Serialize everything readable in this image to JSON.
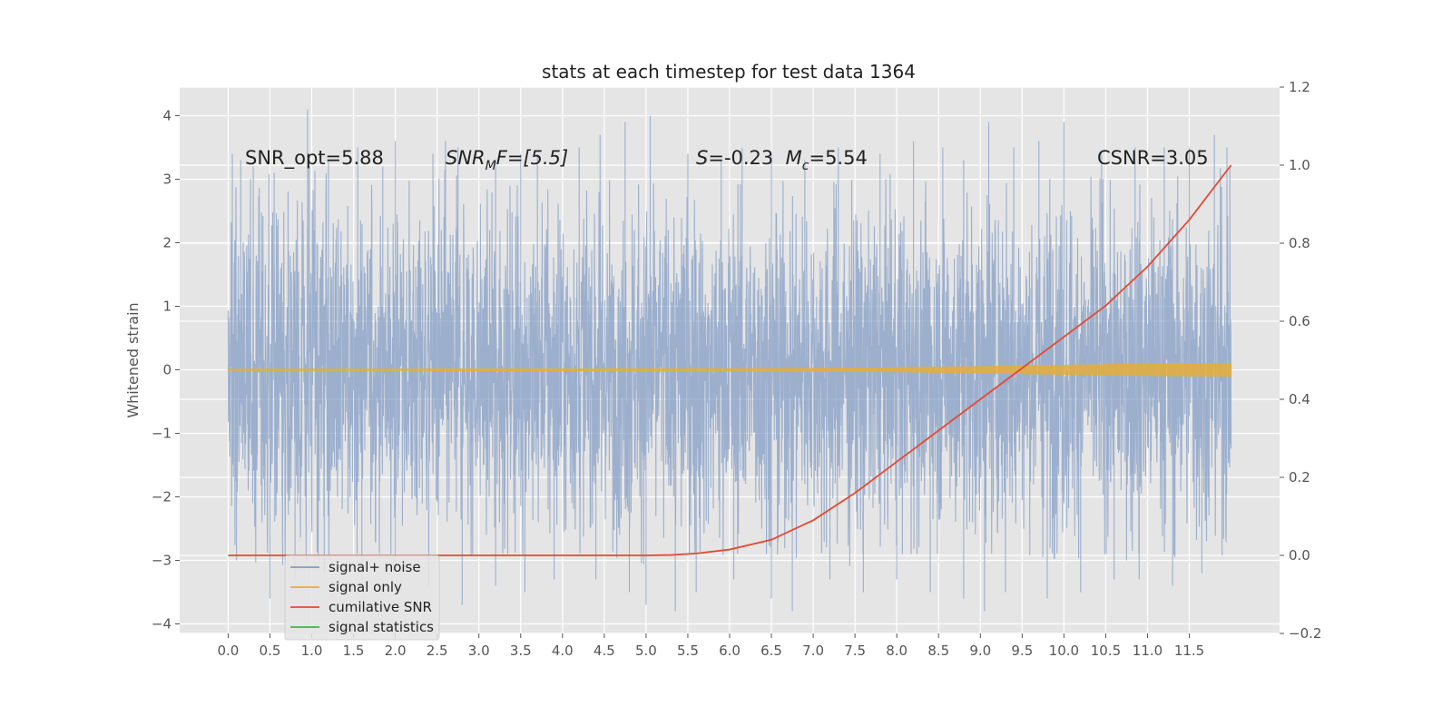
{
  "chart_data": {
    "type": "line",
    "title": "stats at each timestep for test data 1364",
    "ylabel": "Whitened strain",
    "xlim": [
      -0.58,
      12.58
    ],
    "ylim": [
      -4.15,
      4.45
    ],
    "y2lim": [
      -0.2,
      1.2
    ],
    "grid": true,
    "x_ticks": [
      "0.0",
      "0.5",
      "1.0",
      "1.5",
      "2.0",
      "2.5",
      "3.0",
      "3.5",
      "4.0",
      "4.5",
      "5.0",
      "5.5",
      "6.0",
      "6.5",
      "7.0",
      "7.5",
      "8.0",
      "8.5",
      "9.0",
      "9.5",
      "10.0",
      "10.5",
      "11.0",
      "11.5"
    ],
    "y_ticks": [
      "4",
      "3",
      "2",
      "1",
      "0",
      "−1",
      "−2",
      "−3",
      "−4"
    ],
    "y2_ticks": [
      "1.2",
      "1.0",
      "0.8",
      "0.6",
      "0.4",
      "0.2",
      "0.0",
      "−0.2"
    ],
    "legend_position": "lower-left",
    "series": [
      {
        "name": "signal+ noise",
        "color": "#7f9ac4",
        "axis": "left",
        "x_range": [
          0.0,
          12.0
        ],
        "envelope_upper": [
          2.6,
          2.8,
          2.9,
          2.7,
          2.6,
          2.9,
          2.6,
          2.6,
          2.9,
          2.7,
          2.6,
          2.8,
          2.6,
          2.7,
          2.6,
          2.7,
          2.8,
          2.6,
          2.7,
          2.6,
          2.8,
          2.7,
          2.6,
          2.8,
          2.9
        ],
        "envelope_lower": [
          -2.6,
          -2.8,
          -2.7,
          -2.6,
          -2.6,
          -2.7,
          -2.6,
          -2.6,
          -2.7,
          -2.6,
          -2.8,
          -2.7,
          -2.6,
          -2.6,
          -2.7,
          -2.8,
          -2.6,
          -2.6,
          -2.7,
          -2.6,
          -2.7,
          -2.6,
          -2.8,
          -2.7,
          -2.6
        ],
        "peaks_x": [
          0.05,
          0.15,
          0.3,
          0.55,
          0.95,
          1.2,
          1.55,
          1.85,
          2.0,
          2.45,
          2.6,
          2.75,
          3.2,
          3.5,
          3.7,
          4.2,
          4.45,
          4.75,
          5.05,
          5.5,
          5.9,
          6.15,
          6.5,
          6.9,
          7.3,
          7.8,
          8.2,
          8.55,
          8.8,
          9.1,
          9.4,
          9.7,
          10.0,
          10.45,
          10.85,
          11.2,
          11.5,
          11.8,
          11.95
        ],
        "peaks_y": [
          3.4,
          3.3,
          3.2,
          3.1,
          4.1,
          3.3,
          3.5,
          3.2,
          3.6,
          3.4,
          3.6,
          3.5,
          3.3,
          3.4,
          3.4,
          3.5,
          3.7,
          3.9,
          4.0,
          3.4,
          3.3,
          3.5,
          3.4,
          3.3,
          3.5,
          3.4,
          3.6,
          3.5,
          3.3,
          3.9,
          3.5,
          3.6,
          3.9,
          3.4,
          3.5,
          3.5,
          3.5,
          3.7,
          3.5
        ],
        "troughs_x": [
          0.1,
          0.5,
          0.8,
          1.15,
          1.6,
          2.0,
          2.4,
          2.8,
          3.2,
          3.55,
          3.9,
          4.4,
          4.8,
          5.0,
          5.35,
          5.6,
          6.05,
          6.5,
          6.75,
          7.2,
          7.6,
          8.0,
          8.4,
          8.8,
          9.05,
          9.3,
          9.8,
          10.2,
          10.6,
          10.9,
          11.3,
          11.65
        ],
        "troughs_y": [
          -3.0,
          -3.6,
          -3.3,
          -3.2,
          -3.3,
          -3.2,
          -3.4,
          -3.7,
          -3.4,
          -3.5,
          -3.3,
          -3.3,
          -3.5,
          -3.7,
          -3.8,
          -3.5,
          -3.3,
          -3.6,
          -3.8,
          -3.3,
          -3.5,
          -3.3,
          -3.5,
          -3.6,
          -3.8,
          -3.5,
          -3.6,
          -3.5,
          -3.3,
          -3.3,
          -3.4,
          -3.2
        ]
      },
      {
        "name": "signal only",
        "color": "#e5ae38",
        "axis": "left",
        "amplitude_x": [
          0.0,
          6.0,
          8.0,
          9.0,
          10.0,
          11.0,
          12.0
        ],
        "amplitude_y": [
          0.01,
          0.015,
          0.03,
          0.05,
          0.07,
          0.09,
          0.1
        ]
      },
      {
        "name": "cumilative SNR",
        "color": "#e24a33",
        "axis": "right",
        "x": [
          0.0,
          1.0,
          2.0,
          3.0,
          4.0,
          5.0,
          5.3,
          5.6,
          6.0,
          6.5,
          7.0,
          7.5,
          8.0,
          8.5,
          9.0,
          9.5,
          10.0,
          10.5,
          11.0,
          11.5,
          12.0
        ],
        "y": [
          0.0,
          0.0,
          0.0,
          0.0,
          0.0,
          0.0,
          0.001,
          0.005,
          0.015,
          0.04,
          0.09,
          0.16,
          0.24,
          0.32,
          0.4,
          0.48,
          0.56,
          0.64,
          0.74,
          0.86,
          1.0
        ]
      },
      {
        "name": "signal statistics",
        "color": "#348abd",
        "axis": "left",
        "x": [],
        "y": []
      }
    ],
    "annotations": [
      {
        "x": 0.2,
        "y": 3.3,
        "text": "SNR_opt=5.88"
      },
      {
        "x": 2.6,
        "y": 3.3,
        "text": "SNR_M F=[5.5]",
        "mainText": "SNR",
        "subText": "M",
        "tailText": "F=[5.5]"
      },
      {
        "x": 5.6,
        "y": 3.3,
        "text": "S=-0.23  M_c=5.54",
        "s_var": "S",
        "s_val": "=-0.23  ",
        "m_var": "M",
        "m_sub": "c",
        "m_val": "=5.54"
      },
      {
        "x": 10.4,
        "y": 3.3,
        "text": "CSNR=3.05"
      }
    ]
  },
  "legend": {
    "items": [
      {
        "label": "signal+ noise",
        "color": "#7f9ac4"
      },
      {
        "label": "signal only",
        "color": "#e5ae38"
      },
      {
        "label": "cumilative SNR",
        "color": "#e24a33"
      },
      {
        "label": "signal statistics",
        "color": "#4daf4a"
      }
    ]
  },
  "colors": {
    "plot_background": "#e5e5e5",
    "grid": "#ffffff"
  }
}
